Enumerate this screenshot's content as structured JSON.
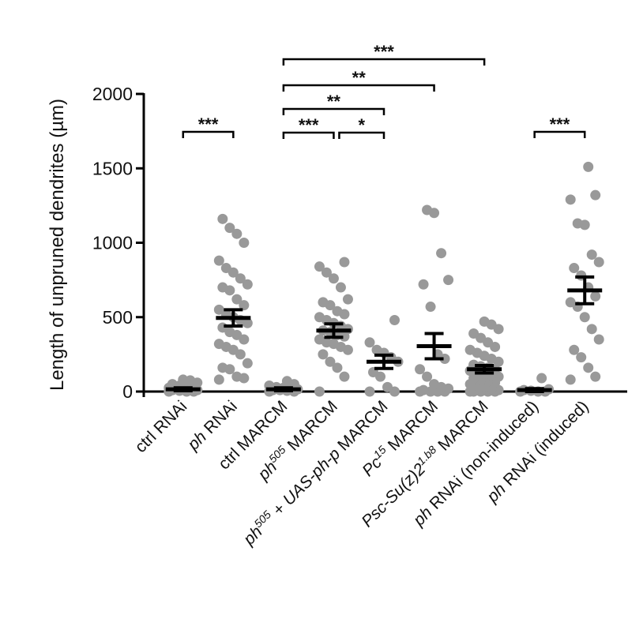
{
  "chart_data": {
    "type": "dotplot",
    "ylabel": "Length of unpruned dendrites (µm)",
    "ylim": [
      0,
      2000
    ],
    "yticks": [
      0,
      500,
      1000,
      1500,
      2000
    ],
    "point_color": "#999999",
    "mean_color": "#000000",
    "categories": [
      [
        {
          "text": "ctrl RNAi"
        }
      ],
      [
        {
          "text": "ph",
          "style": "italic"
        },
        {
          "text": " RNAi"
        }
      ],
      [
        {
          "text": "ctrl MARCM"
        }
      ],
      [
        {
          "text": "ph",
          "style": "italic"
        },
        {
          "text": "505",
          "style": "italic-sup"
        },
        {
          "text": " MARCM"
        }
      ],
      [
        {
          "text": "ph",
          "style": "italic"
        },
        {
          "text": "505",
          "style": "italic-sup"
        },
        {
          "text": " + "
        },
        {
          "text": "UAS-ph-p",
          "style": "italic"
        },
        {
          "text": " MARCM"
        }
      ],
      [
        {
          "text": "Pc",
          "style": "italic"
        },
        {
          "text": "15",
          "style": "italic-sup"
        },
        {
          "text": " MARCM"
        }
      ],
      [
        {
          "text": "Psc-Su(z)2",
          "style": "italic"
        },
        {
          "text": "1.b8",
          "style": "italic-sup"
        },
        {
          "text": " MARCM"
        }
      ],
      [
        {
          "text": "ph",
          "style": "italic"
        },
        {
          "text": " RNAi (non-induced)"
        }
      ],
      [
        {
          "text": "ph",
          "style": "italic"
        },
        {
          "text": " RNAi (induced)"
        }
      ]
    ],
    "points": [
      [
        0,
        0,
        0,
        5,
        10,
        10,
        15,
        20,
        20,
        25,
        30,
        35,
        40,
        50,
        60,
        75,
        80
      ],
      [
        80,
        90,
        100,
        150,
        160,
        190,
        250,
        280,
        300,
        320,
        350,
        380,
        400,
        430,
        460,
        480,
        500,
        520,
        550,
        580,
        620,
        680,
        700,
        720,
        760,
        800,
        830,
        880,
        1000,
        1060,
        1100,
        1160
      ],
      [
        0,
        0,
        5,
        10,
        10,
        15,
        20,
        25,
        30,
        40,
        50,
        70
      ],
      [
        0,
        100,
        160,
        200,
        250,
        280,
        300,
        320,
        330,
        350,
        370,
        380,
        400,
        410,
        420,
        440,
        460,
        480,
        500,
        520,
        540,
        580,
        600,
        620,
        700,
        760,
        800,
        840,
        870
      ],
      [
        0,
        0,
        30,
        100,
        130,
        200,
        230,
        260,
        280,
        330,
        480
      ],
      [
        0,
        0,
        0,
        0,
        10,
        20,
        30,
        50,
        100,
        150,
        220,
        250,
        570,
        720,
        750,
        930,
        1200,
        1220
      ],
      [
        0,
        0,
        0,
        0,
        0,
        10,
        20,
        30,
        40,
        50,
        60,
        70,
        80,
        90,
        100,
        110,
        120,
        130,
        140,
        150,
        160,
        170,
        180,
        200,
        220,
        240,
        260,
        280,
        300,
        330,
        360,
        390,
        420,
        450,
        470
      ],
      [
        0,
        0,
        0,
        5,
        10,
        15,
        90
      ],
      [
        80,
        100,
        160,
        230,
        280,
        350,
        420,
        500,
        570,
        600,
        640,
        700,
        780,
        830,
        870,
        920,
        1120,
        1130,
        1290,
        1320,
        1510
      ]
    ],
    "means": [
      15,
      495,
      15,
      410,
      200,
      305,
      150,
      10,
      680
    ],
    "sem": [
      10,
      55,
      10,
      45,
      45,
      85,
      25,
      10,
      90
    ],
    "comparisons": [
      {
        "from": 0,
        "to": 1,
        "label": "***"
      },
      {
        "from": 2,
        "to": 3,
        "label": "***"
      },
      {
        "from": 3,
        "to": 4,
        "label": "*"
      },
      {
        "from": 2,
        "to": 4,
        "label": "**"
      },
      {
        "from": 2,
        "to": 5,
        "label": "**"
      },
      {
        "from": 2,
        "to": 6,
        "label": "***"
      },
      {
        "from": 7,
        "to": 8,
        "label": "***"
      }
    ]
  }
}
